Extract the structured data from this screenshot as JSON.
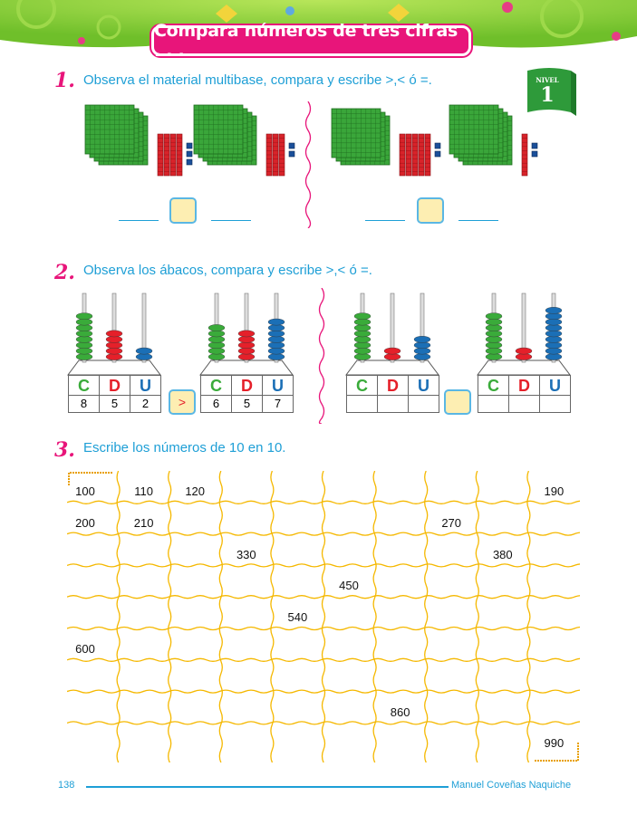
{
  "header": {
    "title": "Compara números de tres cifras . . .",
    "background_color": "#8cd136",
    "banner_color": "#e8157a"
  },
  "level_badge": {
    "label": "NIVEL",
    "number": "1"
  },
  "question1": {
    "number": "1.",
    "text": "Observa el material multibase, compara y escribe >,< ó =.",
    "groups": [
      {
        "hundreds": 4,
        "tens": 4,
        "units": 3
      },
      {
        "hundreds": 4,
        "tens": 3,
        "units": 2
      },
      {
        "hundreds": 3,
        "tens": 5,
        "units": 2
      },
      {
        "hundreds": 4,
        "tens": 1,
        "units": 2
      }
    ]
  },
  "question2": {
    "number": "2.",
    "text": "Observa los ábacos, compara y escribe >,< ó =.",
    "headers": [
      "C",
      "D",
      "U"
    ],
    "abacuses": [
      {
        "values": [
          "8",
          "5",
          "2"
        ],
        "beads": [
          8,
          5,
          2
        ]
      },
      {
        "values": [
          "6",
          "5",
          "7"
        ],
        "beads": [
          6,
          5,
          7
        ]
      },
      {
        "values": [
          "",
          "",
          ""
        ],
        "beads": [
          8,
          2,
          4
        ]
      },
      {
        "values": [
          "",
          "",
          ""
        ],
        "beads": [
          8,
          2,
          9
        ]
      }
    ],
    "comparisons": [
      ">",
      ""
    ]
  },
  "question3": {
    "number": "3.",
    "text": "Escribe los números de 10 en 10.",
    "grid": [
      [
        "100",
        "110",
        "120",
        "",
        "",
        "",
        "",
        "",
        "",
        "190"
      ],
      [
        "200",
        "210",
        "",
        "",
        "",
        "",
        "",
        "270",
        "",
        ""
      ],
      [
        "",
        "",
        "",
        "330",
        "",
        "",
        "",
        "",
        "380",
        ""
      ],
      [
        "",
        "",
        "",
        "",
        "",
        "450",
        "",
        "",
        "",
        ""
      ],
      [
        "",
        "",
        "",
        "",
        "540",
        "",
        "",
        "",
        "",
        ""
      ],
      [
        "600",
        "",
        "",
        "",
        "",
        "",
        "",
        "",
        "",
        ""
      ],
      [
        "",
        "",
        "",
        "",
        "",
        "",
        "",
        "",
        "",
        ""
      ],
      [
        "",
        "",
        "",
        "",
        "",
        "",
        "860",
        "",
        "",
        ""
      ],
      [
        "",
        "",
        "",
        "",
        "",
        "",
        "",
        "",
        "",
        "990"
      ]
    ]
  },
  "footer": {
    "page": "138",
    "author": "Manuel Coveñas Naquiche"
  }
}
